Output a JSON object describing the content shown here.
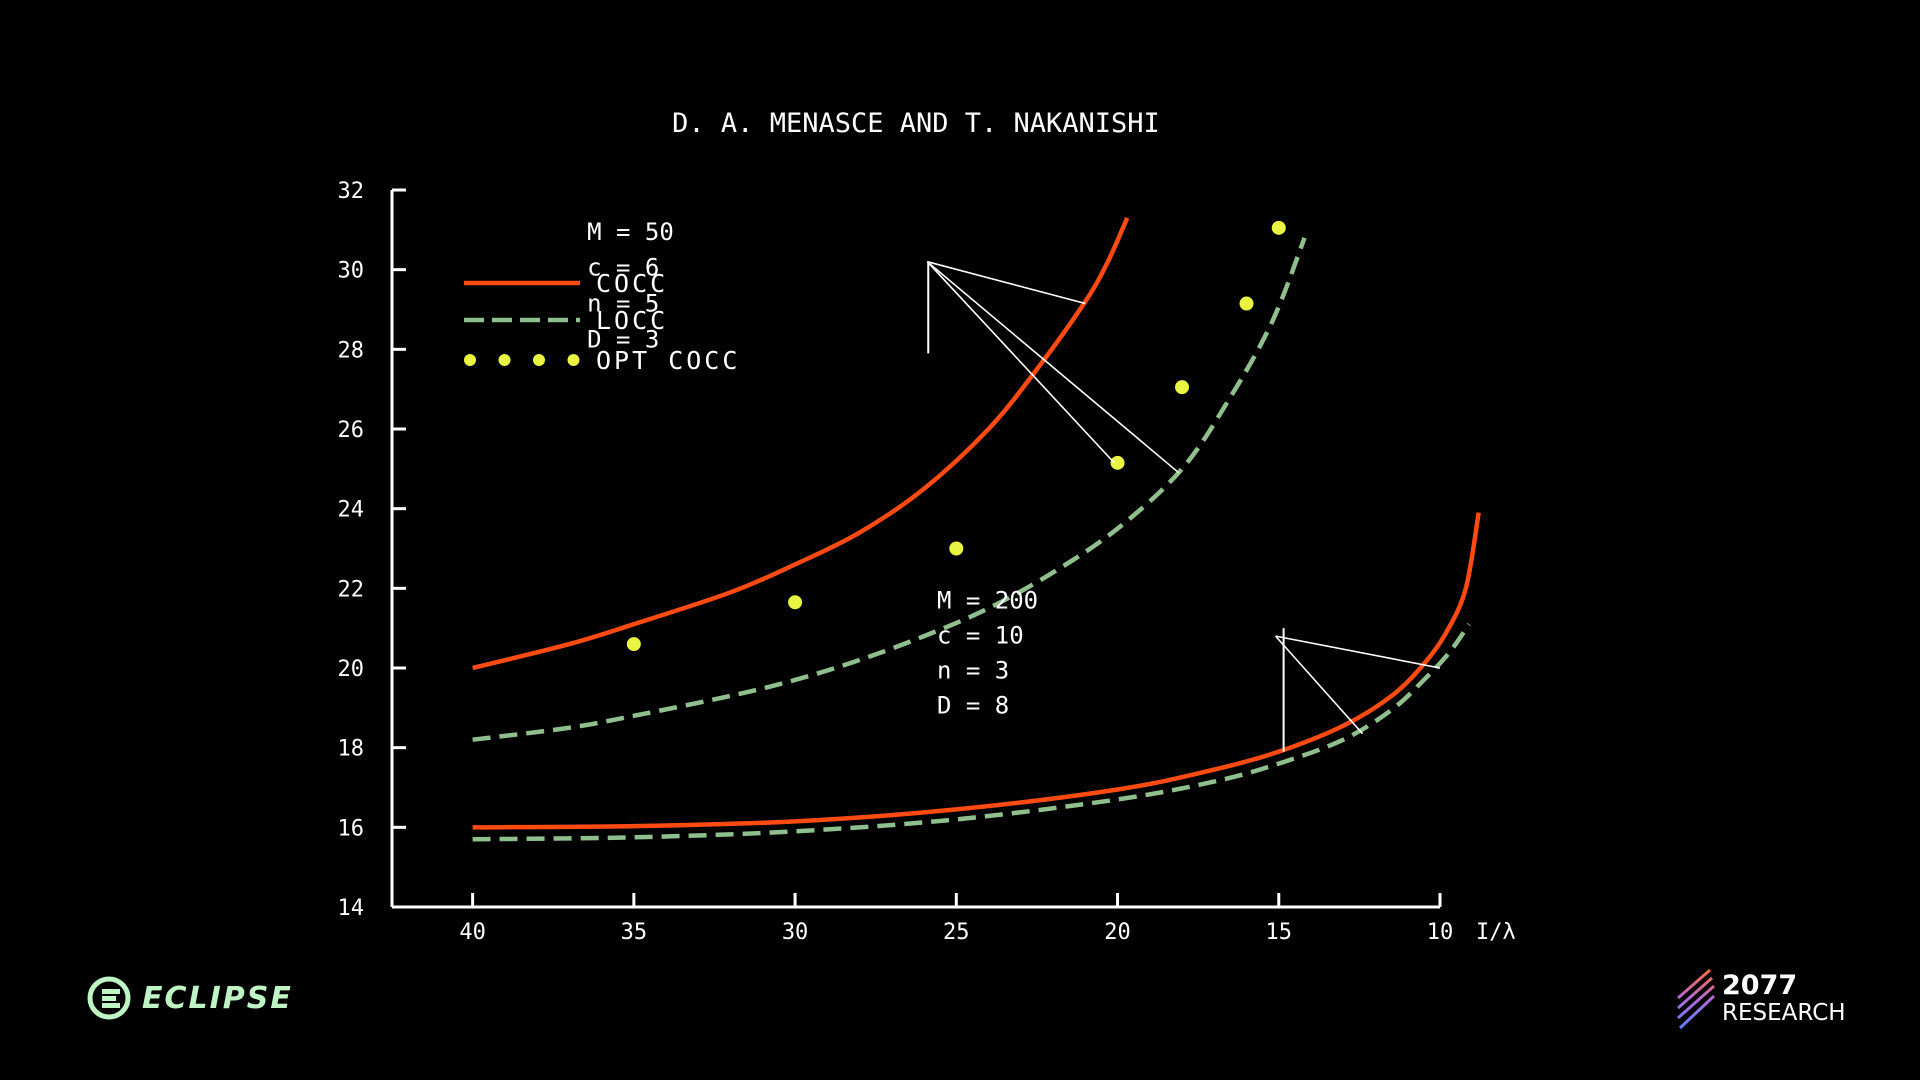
{
  "colors": {
    "background": "#000000",
    "cocc": "#ff4a12",
    "locc": "#8fbf8c",
    "opt": "#e9f542",
    "axis": "#ffffff",
    "brand_eclipse": "#bff5c4",
    "brand_2077_gradient": [
      "#ff6a3d",
      "#b06ad8",
      "#5f7cff"
    ]
  },
  "chart_data": {
    "type": "line",
    "title": "D. A. MENASCE AND T. NAKANISHI",
    "xlabel": "I/λ",
    "ylabel": "",
    "x_reversed": true,
    "xlim": [
      42.5,
      10
    ],
    "ylim": [
      14,
      32
    ],
    "x_ticks": [
      40,
      35,
      30,
      25,
      20,
      15,
      10
    ],
    "y_ticks": [
      14,
      16,
      18,
      20,
      22,
      24,
      26,
      28,
      30,
      32
    ],
    "grid": false,
    "legend": {
      "placement": "top-left",
      "entries": [
        {
          "label": "COCC",
          "style": "solid",
          "color": "#ff4a12"
        },
        {
          "label": "LOCC",
          "style": "dashed",
          "color": "#8fbf8c"
        },
        {
          "label": "OPT COCC",
          "style": "dots",
          "color": "#e9f542"
        }
      ]
    },
    "series": [
      {
        "group": "M50",
        "kind": "COCC",
        "style": "solid",
        "color": "#ff4a12",
        "x": [
          40,
          37,
          35,
          32,
          30,
          28,
          26,
          24,
          22.5,
          21,
          20.3,
          19.7
        ],
        "y": [
          20.0,
          20.6,
          21.1,
          21.9,
          22.6,
          23.4,
          24.5,
          26.0,
          27.5,
          29.2,
          30.2,
          31.3
        ]
      },
      {
        "group": "M50",
        "kind": "LOCC",
        "style": "dashed",
        "color": "#8fbf8c",
        "x": [
          40,
          37,
          35,
          32,
          30,
          28,
          26,
          24,
          22,
          20,
          18,
          16.5,
          15.2,
          14.2
        ],
        "y": [
          18.2,
          18.5,
          18.8,
          19.3,
          19.7,
          20.2,
          20.8,
          21.5,
          22.4,
          23.5,
          25.0,
          26.8,
          28.7,
          30.8
        ]
      },
      {
        "group": "M50",
        "kind": "OPT COCC",
        "style": "dots",
        "color": "#e9f542",
        "x": [
          35,
          30,
          25,
          20,
          18,
          16,
          15
        ],
        "y": [
          20.6,
          21.65,
          23.0,
          25.15,
          27.05,
          29.15,
          31.05
        ]
      },
      {
        "group": "M200",
        "kind": "COCC",
        "style": "solid",
        "color": "#ff4a12",
        "x": [
          40,
          35,
          30,
          25,
          20,
          17,
          15,
          13,
          11.5,
          10.5,
          9.8,
          9.2,
          8.8
        ],
        "y": [
          16.0,
          16.03,
          16.15,
          16.45,
          16.95,
          17.45,
          17.9,
          18.55,
          19.3,
          20.1,
          20.9,
          22.0,
          23.9
        ]
      },
      {
        "group": "M200",
        "kind": "LOCC",
        "style": "dashed",
        "color": "#8fbf8c",
        "x": [
          40,
          35,
          30,
          25,
          20,
          17,
          15,
          13,
          11.5,
          10.5,
          9.7,
          9.1
        ],
        "y": [
          15.7,
          15.75,
          15.9,
          16.2,
          16.7,
          17.15,
          17.6,
          18.2,
          18.95,
          19.7,
          20.4,
          21.1
        ]
      }
    ],
    "annotations": [
      {
        "lines": [
          "M = 50",
          "c = 6",
          "n = 5",
          "D = 3"
        ],
        "bar_x": 25.87,
        "bar_y": [
          30.2,
          27.9
        ],
        "text_x": 36.45,
        "text_y": 30.95,
        "line_step": 0.9,
        "origin": [
          25.9,
          30.2
        ],
        "pointers": [
          [
            21.0,
            29.15
          ],
          [
            18.1,
            24.9
          ],
          [
            20.1,
            25.15
          ]
        ]
      },
      {
        "lines": [
          "M = 200",
          "c = 10",
          "n = 3",
          "D = 8"
        ],
        "bar_x": 14.85,
        "bar_y": [
          21.0,
          17.9
        ],
        "text_x": 25.6,
        "text_y": 21.7,
        "line_step": 0.88,
        "origin": [
          15.1,
          20.8
        ],
        "pointers": [
          [
            10.0,
            20.0
          ],
          [
            12.4,
            18.35
          ]
        ]
      }
    ]
  },
  "brands": {
    "left": "ECLIPSE",
    "right_top": "2077",
    "right_bottom": "RESEARCH"
  }
}
